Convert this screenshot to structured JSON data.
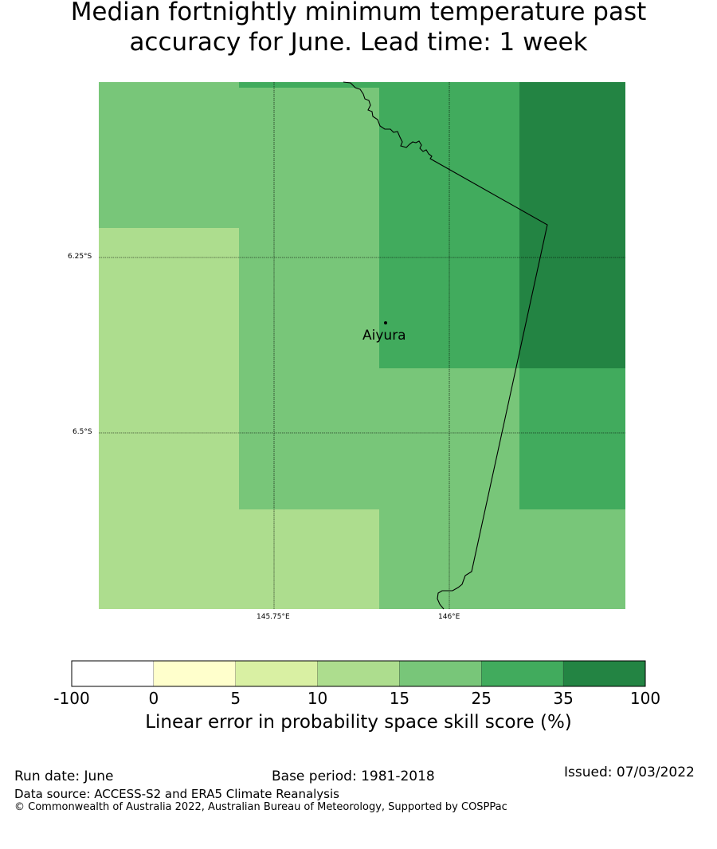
{
  "title_line1": "Median fortnightly minimum temperature past",
  "title_line2": "accuracy for June. Lead time: 1 week",
  "map": {
    "lat_labels": [
      "6.25°S",
      "6.5°S"
    ],
    "lon_labels": [
      "145.75°E",
      "146°E"
    ],
    "location": "Aiyura",
    "cells_skill_band": [
      [
        "15-25",
        "15-25",
        "25-35",
        "35-100"
      ],
      [
        "10-15",
        "15-25",
        "25-35",
        "35-100"
      ],
      [
        "10-15",
        "15-25",
        "15-25",
        "25-35"
      ],
      [
        "10-15",
        "10-15",
        "15-25",
        "15-25"
      ]
    ]
  },
  "colorbar": {
    "label": "Linear error in probability space skill score (%)",
    "ticks": [
      "-100",
      "0",
      "5",
      "10",
      "15",
      "25",
      "35",
      "100"
    ],
    "colors": [
      "#ffffff",
      "#ffffcc",
      "#d9f0a3",
      "#addd8e",
      "#78c679",
      "#41ab5d",
      "#238443"
    ]
  },
  "footer": {
    "run_date": "Run date: June",
    "base_period": "Base period: 1981-2018",
    "issued": "Issued: 07/03/2022",
    "data_source": "Data source: ACCESS-S2 and ERA5 Climate Reanalysis",
    "copyright": "© Commonwealth of Australia 2022, Australian Bureau of Meteorology, Supported by COSPPac"
  }
}
